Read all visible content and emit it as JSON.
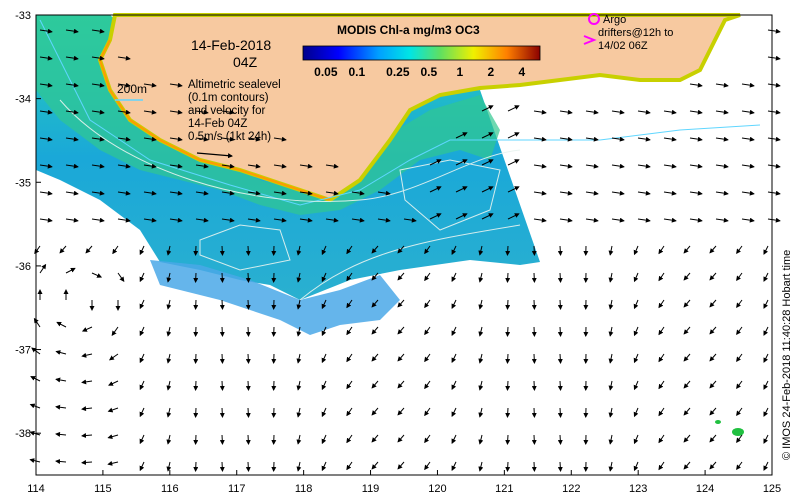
{
  "map": {
    "title": "MODIS Chl-a mg/m3 OC3",
    "date_line": "14-Feb-2018",
    "time_line": "04Z",
    "isobath_label": "200m",
    "description_lines": [
      "Altimetric sealevel",
      "(0.1m contours)",
      "and velocity for",
      "14-Feb 04Z",
      "0.5m/s (1kt 24h)"
    ],
    "legend_argo_lines": [
      "Argo",
      "drifters@12h to",
      "14/02 06Z"
    ],
    "credit": "© IMOS 24-Feb-2018 11:40:28 Hobart time",
    "colorbar_ticks": [
      "0.05",
      "0.1",
      "0.25",
      "0.5",
      "1",
      "2",
      "4"
    ],
    "x_ticks": [
      "114",
      "115",
      "116",
      "117",
      "118",
      "119",
      "120",
      "121",
      "122",
      "123",
      "124",
      "125"
    ],
    "y_ticks": [
      "-33",
      "-34",
      "-35",
      "-36",
      "-37",
      "-38"
    ],
    "extent": {
      "lon": [
        114,
        125
      ],
      "lat": [
        -38.5,
        -33
      ]
    },
    "colors": {
      "land": "#f7c9a0",
      "cloud_free_ocean_low": "#1e90d8",
      "coast_high": "#ff9a00",
      "argo_marker": "#ff00ff",
      "isobath": "#5fd6ff"
    }
  }
}
